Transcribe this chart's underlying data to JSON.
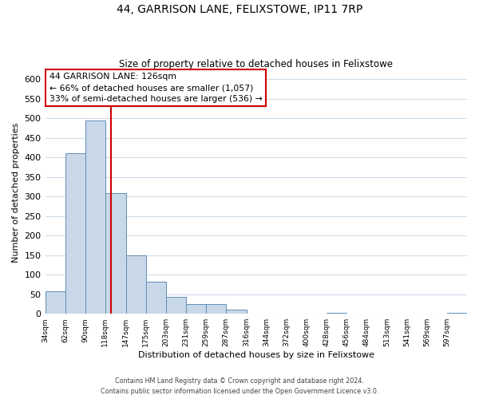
{
  "title": "44, GARRISON LANE, FELIXSTOWE, IP11 7RP",
  "subtitle": "Size of property relative to detached houses in Felixstowe",
  "xlabel": "Distribution of detached houses by size in Felixstowe",
  "ylabel": "Number of detached properties",
  "bar_edges": [
    34,
    62,
    90,
    118,
    147,
    175,
    203,
    231,
    259,
    287,
    316,
    344,
    372,
    400,
    428,
    456,
    484,
    513,
    541,
    569,
    597
  ],
  "bar_heights": [
    57,
    410,
    495,
    308,
    150,
    82,
    44,
    25,
    25,
    10,
    0,
    0,
    0,
    0,
    2,
    0,
    0,
    0,
    0,
    0,
    2
  ],
  "bar_color": "#c8d8e8",
  "bar_edge_color": "#6090b8",
  "vline_x": 126,
  "vline_color": "#cc0000",
  "annotation_title": "44 GARRISON LANE: 126sqm",
  "annotation_line1": "← 66% of detached houses are smaller (1,057)",
  "annotation_line2": "33% of semi-detached houses are larger (536) →",
  "annotation_box_color": "#ffffff",
  "annotation_box_edge_color": "#cc0000",
  "xlim": [
    34,
    625
  ],
  "ylim": [
    0,
    620
  ],
  "yticks": [
    0,
    50,
    100,
    150,
    200,
    250,
    300,
    350,
    400,
    450,
    500,
    550,
    600
  ],
  "tick_labels": [
    "34sqm",
    "62sqm",
    "90sqm",
    "118sqm",
    "147sqm",
    "175sqm",
    "203sqm",
    "231sqm",
    "259sqm",
    "287sqm",
    "316sqm",
    "344sqm",
    "372sqm",
    "400sqm",
    "428sqm",
    "456sqm",
    "484sqm",
    "513sqm",
    "541sqm",
    "569sqm",
    "597sqm"
  ],
  "footer_line1": "Contains HM Land Registry data © Crown copyright and database right 2024.",
  "footer_line2": "Contains public sector information licensed under the Open Government Licence v3.0.",
  "bg_color": "#ffffff",
  "grid_color": "#d0dcea"
}
